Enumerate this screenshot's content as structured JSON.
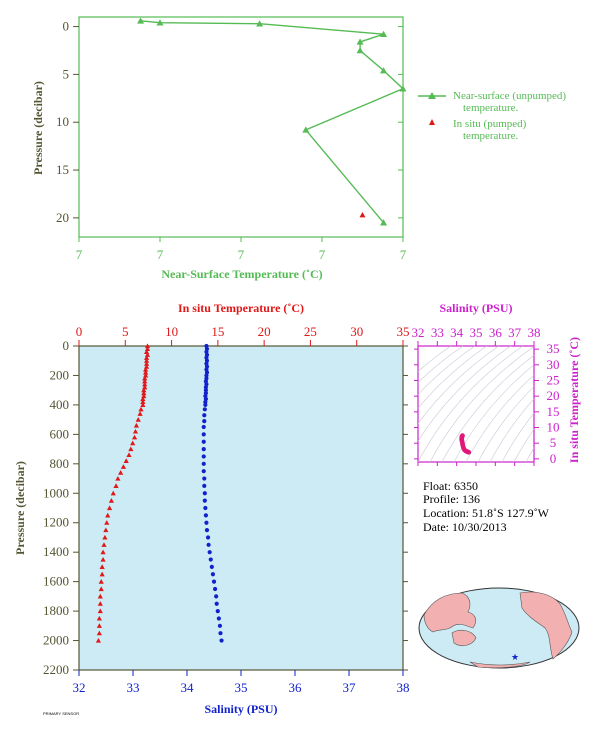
{
  "colors": {
    "green": "#55bb55",
    "red": "#e01818",
    "blue": "#1122cc",
    "magenta": "#cc22cc",
    "axis_dark": "#555533",
    "plot_bg": "#cdebf5",
    "land": "#f2b0b0"
  },
  "top_chart": {
    "xlabel": "Near-Surface Temperature (˚C)",
    "ylabel": "Pressure (decibar)",
    "x_tick_labels": [
      "7",
      "7",
      "7",
      "7",
      "7"
    ],
    "y_ticks": [
      0,
      5,
      10,
      15,
      20
    ],
    "legend": {
      "near_surface": "Near-surface (unpumped) temperature.",
      "in_situ": "In situ (pumped) temperature."
    }
  },
  "bottom_chart": {
    "ylabel": "Pressure (decibar)",
    "top_xlabel": "In situ Temperature (˚C)",
    "bottom_xlabel": "Salinity (PSU)",
    "temp_ticks": [
      0,
      5,
      10,
      15,
      20,
      25,
      30,
      35
    ],
    "sal_ticks": [
      32,
      33,
      34,
      35,
      36,
      37,
      38
    ],
    "p_ticks": [
      0,
      200,
      400,
      600,
      800,
      1000,
      1200,
      1400,
      1600,
      1800,
      2000,
      2200
    ]
  },
  "ts_chart": {
    "top_label": "Salinity (PSU)",
    "right_label": "In situ Temperature (˚C)",
    "sal_ticks": [
      32,
      33,
      34,
      35,
      36,
      37,
      38
    ],
    "temp_ticks": [
      0,
      5,
      10,
      15,
      20,
      25,
      30,
      35
    ]
  },
  "info": {
    "float": "Float:  6350",
    "profile": "Profile:  136",
    "location": "Location:  51.8˚S  127.9˚W",
    "date": "Date:  10/30/2013"
  },
  "footer_code": "PRIMARY SENSOR",
  "chart_data": [
    {
      "type": "line",
      "title": "",
      "xlabel": "Near-Surface Temperature (˚C)",
      "ylabel": "Pressure (decibar)",
      "xlim": [
        6.6,
        7.0
      ],
      "ylim": [
        22,
        -1
      ],
      "series": [
        {
          "name": "Near-surface (unpumped) temperature.",
          "x": [
            6.676,
            6.7,
            6.823,
            6.976,
            6.947,
            6.947,
            6.976,
            7.0,
            6.88,
            6.976
          ],
          "y": [
            -0.6,
            -0.4,
            -0.3,
            0.8,
            1.6,
            2.5,
            4.6,
            6.5,
            10.8,
            20.5
          ]
        },
        {
          "name": "In situ (pumped) temperature.",
          "x": [
            6.95
          ],
          "y": [
            19.7
          ]
        }
      ]
    },
    {
      "type": "scatter",
      "title": "",
      "ylabel": "Pressure (decibar)",
      "ylim": [
        2200,
        0
      ],
      "series": [
        {
          "name": "In situ Temperature (˚C)",
          "xlim": [
            0,
            35
          ],
          "points": [
            [
              7.4,
              0
            ],
            [
              7.4,
              20
            ],
            [
              7.3,
              40
            ],
            [
              7.4,
              60
            ],
            [
              7.3,
              80
            ],
            [
              7.3,
              100
            ],
            [
              7.3,
              120
            ],
            [
              7.3,
              140
            ],
            [
              7.2,
              160
            ],
            [
              7.2,
              180
            ],
            [
              7.2,
              200
            ],
            [
              7.1,
              220
            ],
            [
              7.1,
              240
            ],
            [
              7.1,
              260
            ],
            [
              7.1,
              280
            ],
            [
              7.0,
              300
            ],
            [
              7.0,
              320
            ],
            [
              7.0,
              340
            ],
            [
              6.9,
              360
            ],
            [
              6.9,
              380
            ],
            [
              6.9,
              400
            ],
            [
              6.7,
              430
            ],
            [
              6.6,
              460
            ],
            [
              6.4,
              500
            ],
            [
              6.2,
              540
            ],
            [
              6.1,
              580
            ],
            [
              6.0,
              620
            ],
            [
              5.8,
              660
            ],
            [
              5.6,
              700
            ],
            [
              5.4,
              740
            ],
            [
              5.1,
              780
            ],
            [
              4.8,
              820
            ],
            [
              4.5,
              860
            ],
            [
              4.2,
              900
            ],
            [
              4.0,
              950
            ],
            [
              3.7,
              1000
            ],
            [
              3.5,
              1050
            ],
            [
              3.3,
              1100
            ],
            [
              3.1,
              1150
            ],
            [
              3.0,
              1200
            ],
            [
              2.9,
              1250
            ],
            [
              2.8,
              1300
            ],
            [
              2.7,
              1350
            ],
            [
              2.6,
              1400
            ],
            [
              2.6,
              1450
            ],
            [
              2.5,
              1500
            ],
            [
              2.5,
              1550
            ],
            [
              2.4,
              1600
            ],
            [
              2.4,
              1650
            ],
            [
              2.3,
              1700
            ],
            [
              2.3,
              1750
            ],
            [
              2.3,
              1800
            ],
            [
              2.2,
              1850
            ],
            [
              2.2,
              1900
            ],
            [
              2.2,
              1950
            ],
            [
              2.1,
              2000
            ]
          ]
        },
        {
          "name": "Salinity (PSU)",
          "xlim": [
            32,
            38
          ],
          "points": [
            [
              34.36,
              0
            ],
            [
              34.37,
              20
            ],
            [
              34.36,
              40
            ],
            [
              34.37,
              60
            ],
            [
              34.36,
              80
            ],
            [
              34.37,
              100
            ],
            [
              34.36,
              120
            ],
            [
              34.37,
              140
            ],
            [
              34.36,
              160
            ],
            [
              34.37,
              180
            ],
            [
              34.36,
              200
            ],
            [
              34.36,
              220
            ],
            [
              34.35,
              240
            ],
            [
              34.36,
              260
            ],
            [
              34.35,
              280
            ],
            [
              34.35,
              300
            ],
            [
              34.35,
              320
            ],
            [
              34.34,
              340
            ],
            [
              34.35,
              360
            ],
            [
              34.34,
              380
            ],
            [
              34.34,
              400
            ],
            [
              34.33,
              430
            ],
            [
              34.32,
              470
            ],
            [
              34.32,
              510
            ],
            [
              34.31,
              550
            ],
            [
              34.31,
              600
            ],
            [
              34.31,
              650
            ],
            [
              34.31,
              700
            ],
            [
              34.31,
              750
            ],
            [
              34.31,
              800
            ],
            [
              34.31,
              850
            ],
            [
              34.32,
              900
            ],
            [
              34.32,
              950
            ],
            [
              34.33,
              1000
            ],
            [
              34.33,
              1050
            ],
            [
              34.34,
              1100
            ],
            [
              34.35,
              1150
            ],
            [
              34.36,
              1200
            ],
            [
              34.37,
              1250
            ],
            [
              34.39,
              1300
            ],
            [
              34.4,
              1350
            ],
            [
              34.42,
              1400
            ],
            [
              34.44,
              1450
            ],
            [
              34.46,
              1500
            ],
            [
              34.48,
              1550
            ],
            [
              34.5,
              1600
            ],
            [
              34.52,
              1650
            ],
            [
              34.54,
              1700
            ],
            [
              34.55,
              1750
            ],
            [
              34.57,
              1800
            ],
            [
              34.59,
              1850
            ],
            [
              34.61,
              1900
            ],
            [
              34.62,
              1950
            ],
            [
              34.64,
              2000
            ]
          ]
        }
      ]
    },
    {
      "type": "scatter",
      "title": "",
      "xlabel": "Salinity (PSU)",
      "ylabel": "In situ Temperature (˚C)",
      "xlim": [
        32,
        38
      ],
      "ylim": [
        -1,
        36
      ],
      "series": [
        {
          "name": "T-S profile",
          "points": [
            [
              34.3,
              7.4
            ],
            [
              34.28,
              7.2
            ],
            [
              34.27,
              6.9
            ],
            [
              34.26,
              6.6
            ],
            [
              34.26,
              6.2
            ],
            [
              34.27,
              5.8
            ],
            [
              34.29,
              5.2
            ],
            [
              34.31,
              4.6
            ],
            [
              34.33,
              4.0
            ],
            [
              34.36,
              3.4
            ],
            [
              34.4,
              2.9
            ],
            [
              34.45,
              2.6
            ],
            [
              34.5,
              2.4
            ],
            [
              34.55,
              2.3
            ],
            [
              34.62,
              2.1
            ]
          ]
        }
      ]
    }
  ]
}
